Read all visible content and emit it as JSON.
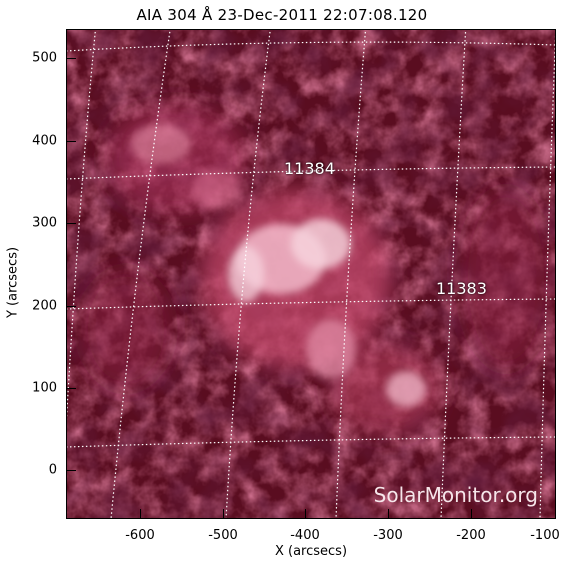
{
  "title": "AIA 304 Å 23-Dec-2011 22:07:08.120",
  "axes": {
    "x_label": "X (arcsecs)",
    "y_label": "Y (arcsecs)",
    "x_ticks": [
      "-600",
      "-500",
      "-400",
      "-300",
      "-200",
      "-100"
    ],
    "y_ticks": [
      "500",
      "400",
      "300",
      "200",
      "100",
      "0"
    ]
  },
  "regions": [
    {
      "label": "11384"
    },
    {
      "label": "11383"
    }
  ],
  "watermark": "SolarMonitor.org",
  "colors": {
    "background": "#5a0d20",
    "emission_mid": "#b23a5c",
    "emission_bright": "#f7d6df",
    "grid": "#ffffff"
  }
}
